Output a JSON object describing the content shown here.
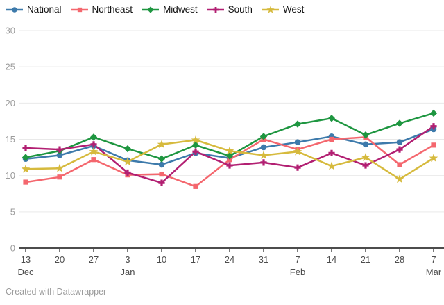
{
  "chart_data": {
    "type": "line",
    "title": "",
    "xlabel": "",
    "ylabel": "",
    "ylim": [
      0,
      30
    ],
    "yticks": [
      0,
      5,
      10,
      15,
      20,
      25,
      30
    ],
    "grid": true,
    "legend_position": "top",
    "x": {
      "tick_labels": [
        "13",
        "20",
        "27",
        "3",
        "10",
        "17",
        "24",
        "31",
        "7",
        "14",
        "21",
        "28",
        "7"
      ],
      "month_labels": [
        {
          "index": 0,
          "label": "Dec"
        },
        {
          "index": 3,
          "label": "Jan"
        },
        {
          "index": 8,
          "label": "Feb"
        },
        {
          "index": 12,
          "label": "Mar"
        }
      ]
    },
    "series": [
      {
        "name": "National",
        "marker": "circle",
        "color": "#3d7aab",
        "values": [
          12.3,
          12.8,
          14.1,
          12.1,
          11.5,
          13.1,
          12.4,
          13.9,
          14.6,
          15.4,
          14.3,
          14.6,
          16.4
        ]
      },
      {
        "name": "Northeast",
        "marker": "square",
        "color": "#f4676e",
        "values": [
          9.1,
          9.8,
          12.2,
          10.1,
          10.2,
          8.5,
          12.2,
          15.0,
          13.6,
          15.0,
          15.3,
          11.5,
          14.2
        ]
      },
      {
        "name": "Midwest",
        "marker": "diamond",
        "color": "#1e9640",
        "values": [
          12.5,
          13.4,
          15.3,
          13.7,
          12.3,
          14.2,
          12.7,
          15.4,
          17.1,
          17.9,
          15.6,
          17.2,
          18.6
        ]
      },
      {
        "name": "South",
        "marker": "plus",
        "color": "#b21f72",
        "values": [
          13.8,
          13.6,
          14.3,
          10.4,
          9.0,
          13.3,
          11.4,
          11.8,
          11.1,
          13.1,
          11.4,
          13.6,
          16.8
        ]
      },
      {
        "name": "West",
        "marker": "star",
        "color": "#d6ba3d",
        "values": [
          10.9,
          11.0,
          13.3,
          11.9,
          14.3,
          14.9,
          13.4,
          12.8,
          13.3,
          11.3,
          12.5,
          9.5,
          12.4
        ]
      }
    ],
    "style": {
      "grid_color": "#e9e9e9",
      "axis_color": "#4c4c4c",
      "y_tick_text_color": "#9c9c9c",
      "x_tick_text_color": "#4c4c4c"
    }
  },
  "footer": {
    "credit": "Created with Datawrapper"
  }
}
